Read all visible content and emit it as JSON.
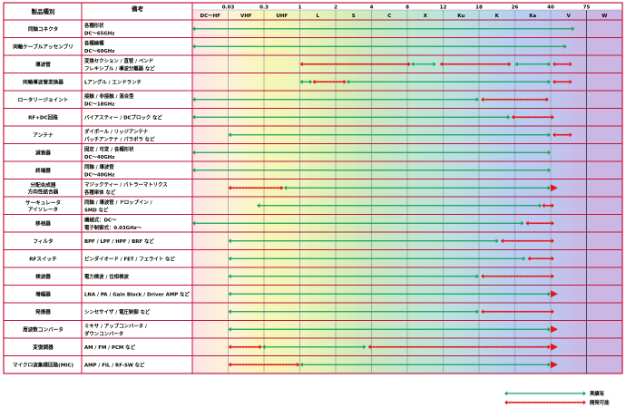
{
  "chart_data": {
    "type": "table",
    "header": {
      "product": "製品種別",
      "notes": "備考"
    },
    "bands": [
      "DC〜HF",
      "VHF",
      "UHF",
      "L",
      "S",
      "C",
      "X",
      "Ku",
      "K",
      "Ka",
      "V",
      "W"
    ],
    "band_colors": [
      "#fde4e6",
      "#fdf3d8",
      "#f9f6b7",
      "#eef4b9",
      "#dcefb6",
      "#cbe8c0",
      "#c2e6cf",
      "#bde3dc",
      "#bad9e6",
      "#b7cff0",
      "#bdc8ef",
      "#cbb7e3"
    ],
    "boundaries": [
      "0.03",
      "0.3",
      "1",
      "2",
      "4",
      "8",
      "12",
      "18",
      "26",
      "40",
      "75"
    ],
    "rows": [
      {
        "name": "同軸コネクタ",
        "notes": [
          "各種形状",
          "DC〜65GHz"
        ],
        "segs": [
          {
            "a": 0,
            "b": 10.67,
            "k": "solid",
            "s": true,
            "e": true
          }
        ]
      },
      {
        "name": "同軸ケーブルアッセンブリ",
        "notes": [
          "各種線種",
          "DC〜60GHz"
        ],
        "segs": [
          {
            "a": 0,
            "b": 10.45,
            "k": "solid",
            "s": true,
            "e": true
          }
        ]
      },
      {
        "name": "導波管",
        "notes": [
          "変換セクション / 直管 / ベンド",
          "フレキシブル / 導波分離器 など"
        ],
        "segs": [
          {
            "a": 3.0,
            "b": 6.1,
            "k": "dot",
            "s": true,
            "e": true
          },
          {
            "a": 6.1,
            "b": 6.8,
            "k": "solid",
            "s": true,
            "e": true
          },
          {
            "a": 6.9,
            "b": 8.9,
            "k": "dot",
            "s": true,
            "e": true
          },
          {
            "a": 9.0,
            "b": 10.0,
            "k": "solid",
            "s": true,
            "e": true
          },
          {
            "a": 10.05,
            "b": 10.6,
            "k": "dot",
            "s": true,
            "e": true
          }
        ]
      },
      {
        "name": "同軸導波管変換器",
        "notes": [
          "Lアングル / エンドランチ"
        ],
        "segs": [
          {
            "a": 3.0,
            "b": 3.35,
            "k": "solid",
            "s": true,
            "e": true
          },
          {
            "a": 3.35,
            "b": 4.3,
            "k": "dot",
            "s": true,
            "e": true
          },
          {
            "a": 4.3,
            "b": 10.0,
            "k": "solid",
            "s": true,
            "e": true
          },
          {
            "a": 10.05,
            "b": 10.6,
            "k": "dot",
            "s": true,
            "e": true
          }
        ]
      },
      {
        "name": "ロータリージョイント",
        "notes": [
          "接触 / 非接触 / 混合型",
          "DC〜18GHz"
        ],
        "segs": [
          {
            "a": 0,
            "b": 8.0,
            "k": "solid",
            "s": true,
            "e": true
          },
          {
            "a": 8.05,
            "b": 9.95,
            "k": "dot",
            "s": true,
            "e": true
          }
        ]
      },
      {
        "name": "RF+DC回路",
        "notes": [
          "バイアスティー / DCブロック など"
        ],
        "segs": [
          {
            "a": 0,
            "b": 8.87,
            "k": "solid",
            "s": true,
            "e": true
          },
          {
            "a": 8.9,
            "b": 10.1,
            "k": "dot",
            "s": true,
            "e": true
          }
        ]
      },
      {
        "name": "アンテナ",
        "notes": [
          "ダイポール / リッジアンテナ",
          "パッチアンテナ / パラボラ など"
        ],
        "segs": [
          {
            "a": 1.0,
            "b": 10.0,
            "k": "solid",
            "s": true,
            "e": true
          },
          {
            "a": 10.05,
            "b": 10.6,
            "k": "dot",
            "s": true,
            "e": true
          }
        ]
      },
      {
        "name": "減衰器",
        "notes": [
          "固定 / 可変 / 各種形状",
          "DC〜40GHz"
        ],
        "segs": [
          {
            "a": 0,
            "b": 10.0,
            "k": "solid",
            "s": true,
            "e": true
          }
        ]
      },
      {
        "name": "終端器",
        "notes": [
          "同軸 / 導波管",
          "DC〜40GHz"
        ],
        "segs": [
          {
            "a": 0,
            "b": 10.0,
            "k": "solid",
            "s": true,
            "e": true
          }
        ]
      },
      {
        "name": "分配合成器",
        "name2": "方向性結合器",
        "notes": [
          "マジックティー / バトラーマトリクス",
          "各種単体 など"
        ],
        "segs": [
          {
            "a": 1.0,
            "b": 2.55,
            "k": "dot",
            "s": true,
            "e": true
          },
          {
            "a": 2.55,
            "b": 10.0,
            "k": "solid",
            "s": true,
            "e": true
          },
          {
            "a": 10.0,
            "b": 10.2,
            "k": "tri",
            "s": false,
            "e": true
          }
        ]
      },
      {
        "name": "サーキュレータ",
        "name2": "アイソレータ",
        "notes": [
          "同軸 / 導波管 / ドロップイン /",
          "SMD など"
        ],
        "segs": [
          {
            "a": 1.8,
            "b": 9.75,
            "k": "solid",
            "s": true,
            "e": true
          },
          {
            "a": 9.75,
            "b": 10.1,
            "k": "dot",
            "s": true,
            "e": true
          }
        ]
      },
      {
        "name": "移相器",
        "notes": [
          "機械式：DC〜",
          "電子制御式：0.03GHz〜"
        ],
        "segs": [
          {
            "a": 0,
            "b": 9.25,
            "k": "solid",
            "s": true,
            "e": true
          },
          {
            "a": 9.3,
            "b": 10.1,
            "k": "dot",
            "s": true,
            "e": true
          }
        ]
      },
      {
        "name": "フィルタ",
        "notes": [
          "BPF / LPF / HPF / BRF など"
        ],
        "segs": [
          {
            "a": 1.0,
            "b": 8.55,
            "k": "solid",
            "s": true,
            "e": true
          },
          {
            "a": 8.6,
            "b": 10.1,
            "k": "dot",
            "s": true,
            "e": true
          }
        ]
      },
      {
        "name": "RFスイッチ",
        "notes": [
          "ピンダイオード / FET / フェライト など"
        ],
        "segs": [
          {
            "a": 1.0,
            "b": 9.3,
            "k": "solid",
            "s": true,
            "e": true
          },
          {
            "a": 9.35,
            "b": 10.1,
            "k": "dot",
            "s": true,
            "e": true
          }
        ]
      },
      {
        "name": "検波器",
        "notes": [
          "電力検波 / 位相検波"
        ],
        "segs": [
          {
            "a": 1.0,
            "b": 8.0,
            "k": "solid",
            "s": true,
            "e": true
          },
          {
            "a": 8.05,
            "b": 10.1,
            "k": "dot",
            "s": true,
            "e": true
          }
        ]
      },
      {
        "name": "増幅器",
        "notes": [
          "LNA / PA / Gain Block / Driver AMP など"
        ],
        "segs": [
          {
            "a": 1.0,
            "b": 10.0,
            "k": "solid",
            "s": true,
            "e": true
          },
          {
            "a": 10.0,
            "b": 10.2,
            "k": "tri",
            "s": false,
            "e": true
          }
        ]
      },
      {
        "name": "発振器",
        "notes": [
          "シンセサイザ / 電圧制御 など"
        ],
        "segs": [
          {
            "a": 1.0,
            "b": 8.0,
            "k": "solid",
            "s": true,
            "e": true
          },
          {
            "a": 8.05,
            "b": 10.1,
            "k": "dot",
            "s": true,
            "e": true
          }
        ]
      },
      {
        "name": "周波数コンバータ",
        "notes": [
          "ミキサ / アップコンバータ /",
          "ダウンコンバータ"
        ],
        "segs": [
          {
            "a": 1.0,
            "b": 10.0,
            "k": "solid",
            "s": true,
            "e": true
          },
          {
            "a": 10.0,
            "b": 10.2,
            "k": "tri",
            "s": false,
            "e": true
          }
        ]
      },
      {
        "name": "変復調器",
        "notes": [
          "AM / FM / PCM など"
        ],
        "segs": [
          {
            "a": 1.0,
            "b": 1.95,
            "k": "dot",
            "s": true,
            "e": true
          },
          {
            "a": 1.95,
            "b": 4.85,
            "k": "solid",
            "s": true,
            "e": true
          },
          {
            "a": 4.9,
            "b": 10.0,
            "k": "dot",
            "s": true,
            "e": true
          },
          {
            "a": 10.0,
            "b": 10.2,
            "k": "tri",
            "s": false,
            "e": true
          }
        ]
      },
      {
        "name": "マイクロ波集積回路(MIC)",
        "notes": [
          "AMP / FIL / RF-SW など"
        ],
        "segs": [
          {
            "a": 1.0,
            "b": 3.0,
            "k": "dot",
            "s": true,
            "e": true
          },
          {
            "a": 3.0,
            "b": 10.0,
            "k": "solid",
            "s": true,
            "e": true
          },
          {
            "a": 10.0,
            "b": 10.2,
            "k": "tri",
            "s": false,
            "e": true
          }
        ]
      }
    ],
    "legend": [
      {
        "label": "実績有",
        "kind": "solid"
      },
      {
        "label": "開発可能",
        "kind": "dot"
      }
    ],
    "colors": {
      "solid": "#13a15b",
      "dot": "#e8151a",
      "border": "#c0143c"
    }
  }
}
